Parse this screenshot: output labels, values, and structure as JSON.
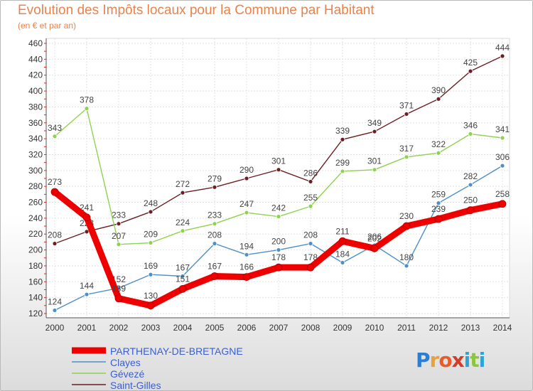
{
  "title": "Evolution des Impôts locaux pour la Commune par Habitant",
  "subtitle": "(en € et par an)",
  "logo": "Proxiti",
  "chart_data": {
    "type": "line",
    "x": [
      2000,
      2001,
      2002,
      2003,
      2004,
      2005,
      2006,
      2007,
      2008,
      2009,
      2010,
      2011,
      2012,
      2013,
      2014
    ],
    "ylim": [
      120,
      460
    ],
    "yticks": [
      120,
      140,
      160,
      180,
      200,
      220,
      240,
      260,
      280,
      300,
      320,
      340,
      360,
      380,
      400,
      420,
      440,
      460
    ],
    "grid": true,
    "legend_position": "bottom-left",
    "series": [
      {
        "name": "Saint-Gilles",
        "color": "#6b1f22",
        "values": [
          208,
          223,
          233,
          248,
          272,
          279,
          290,
          301,
          286,
          339,
          349,
          371,
          390,
          425,
          444
        ]
      },
      {
        "name": "Gévezé",
        "color": "#8fd24f",
        "values": [
          343,
          378,
          207,
          209,
          224,
          233,
          247,
          242,
          255,
          299,
          301,
          317,
          322,
          346,
          341
        ]
      },
      {
        "name": "Clayes",
        "color": "#4d8fc7",
        "values": [
          124,
          144,
          152,
          169,
          167,
          208,
          194,
          200,
          208,
          184,
          206,
          180,
          259,
          282,
          306
        ]
      },
      {
        "name": "PARTHENAY-DE-BRETAGNE",
        "color": "#ee0000",
        "values": [
          273,
          241,
          139,
          130,
          151,
          167,
          166,
          178,
          178,
          211,
          202,
          230,
          239,
          250,
          258
        ]
      }
    ],
    "legend_order": [
      "PARTHENAY-DE-BRETAGNE",
      "Clayes",
      "Gévezé",
      "Saint-Gilles"
    ]
  }
}
